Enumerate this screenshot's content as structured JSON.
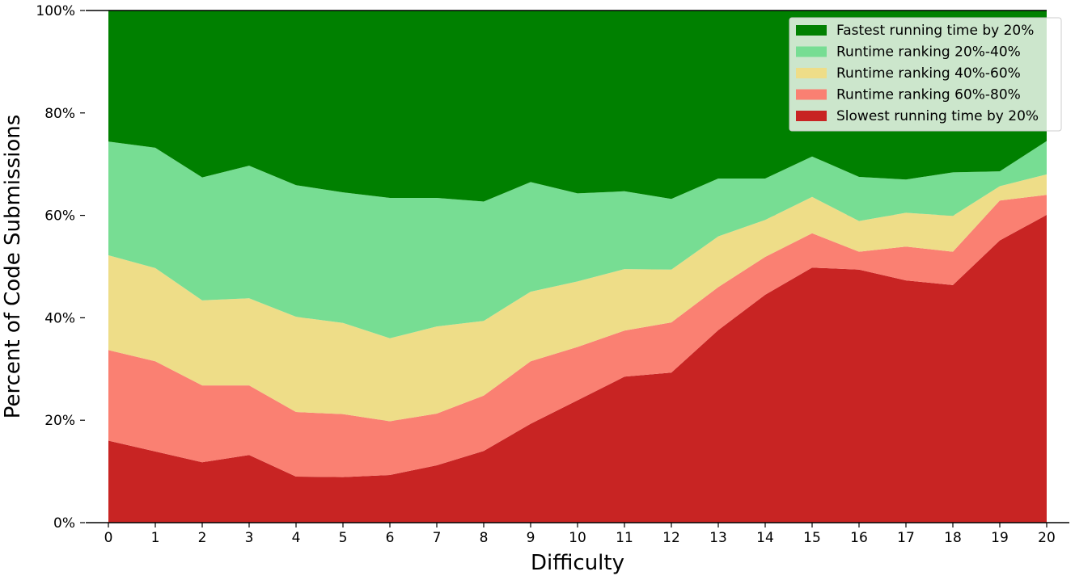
{
  "chart_data": {
    "type": "area",
    "stacked": true,
    "normalized_percent": true,
    "title": "",
    "xlabel": "Difficulty",
    "ylabel": "Percent of Code Submissions",
    "x": [
      0,
      1,
      2,
      3,
      4,
      5,
      6,
      7,
      8,
      9,
      10,
      11,
      12,
      13,
      14,
      15,
      16,
      17,
      18,
      19,
      20
    ],
    "xlim": [
      0,
      20
    ],
    "ylim": [
      0,
      100
    ],
    "y_ticks": [
      0,
      20,
      40,
      60,
      80,
      100
    ],
    "y_tick_labels": [
      "0%",
      "20%",
      "40%",
      "60%",
      "80%",
      "100%"
    ],
    "x_tick_labels": [
      "0",
      "1",
      "2",
      "3",
      "4",
      "5",
      "6",
      "7",
      "8",
      "9",
      "10",
      "11",
      "12",
      "13",
      "14",
      "15",
      "16",
      "17",
      "18",
      "19",
      "20"
    ],
    "grid": "horizontal",
    "legend_position": "top-right",
    "series": [
      {
        "name": "Slowest running time by 20%",
        "color": "#c82423",
        "values": [
          16.0,
          13.9,
          11.8,
          13.2,
          9.0,
          8.9,
          9.3,
          11.2,
          14.0,
          19.3,
          23.9,
          28.5,
          29.3,
          37.6,
          44.5,
          49.8,
          49.4,
          47.3,
          46.4,
          55.1,
          60.1
        ]
      },
      {
        "name": "Runtime ranking 60%-80%",
        "color": "#fa8072",
        "values": [
          17.7,
          17.6,
          15.0,
          13.6,
          12.6,
          12.3,
          10.5,
          10.1,
          10.8,
          12.2,
          10.4,
          9.0,
          9.8,
          8.4,
          7.4,
          6.7,
          3.5,
          6.6,
          6.5,
          7.8,
          3.9
        ]
      },
      {
        "name": "Runtime ranking 40%-60%",
        "color": "#eedd88",
        "values": [
          18.5,
          18.2,
          16.6,
          17.0,
          18.6,
          17.8,
          16.2,
          17.0,
          14.6,
          13.6,
          12.8,
          12.0,
          10.3,
          9.9,
          7.2,
          7.1,
          6.0,
          6.6,
          7.0,
          2.8,
          4.0
        ]
      },
      {
        "name": "Runtime ranking 20%-40%",
        "color": "#77dd93",
        "values": [
          22.2,
          23.5,
          24.0,
          25.9,
          25.7,
          25.5,
          27.4,
          25.1,
          23.3,
          21.4,
          17.2,
          15.2,
          13.8,
          11.3,
          8.1,
          7.9,
          8.6,
          6.5,
          8.5,
          2.9,
          6.5
        ]
      },
      {
        "name": "Fastest running time by 20%",
        "color": "#008000",
        "values": [
          25.6,
          26.8,
          32.6,
          30.3,
          34.1,
          35.5,
          36.6,
          36.6,
          37.3,
          33.5,
          35.7,
          35.3,
          36.8,
          32.8,
          32.8,
          28.5,
          32.5,
          33.0,
          31.6,
          31.4,
          25.5
        ]
      }
    ],
    "legend_order": [
      "Fastest running time by 20%",
      "Runtime ranking 20%-40%",
      "Runtime ranking 40%-60%",
      "Runtime ranking 60%-80%",
      "Slowest running time by 20%"
    ]
  }
}
